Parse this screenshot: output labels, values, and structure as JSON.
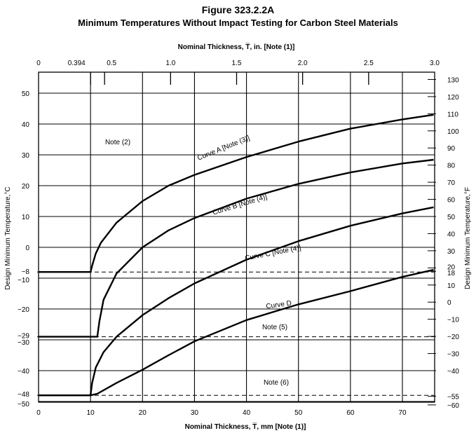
{
  "figure": {
    "number": "Figure 323.2.2A",
    "title": "Minimum Temperatures Without Impact Testing for Carbon Steel Materials"
  },
  "chart_data": {
    "type": "line",
    "x_bottom": {
      "label": "Nominal Thickness, T̅, mm [Note (1)]",
      "ticks": [
        0,
        10,
        20,
        30,
        40,
        50,
        60,
        70
      ],
      "range": [
        0,
        76.2
      ]
    },
    "x_top": {
      "label": "Nominal Thickness, T̅, in. [Note (1)]",
      "ticks": [
        {
          "label": "0",
          "in": 0
        },
        {
          "label": "0.394",
          "in": 0.394
        },
        {
          "label": "0.5",
          "in": 0.5
        },
        {
          "label": "1.0",
          "in": 1.0
        },
        {
          "label": "1.5",
          "in": 1.5
        },
        {
          "label": "2.0",
          "in": 2.0
        },
        {
          "label": "2.5",
          "in": 2.5
        },
        {
          "label": "3.0",
          "in": 3.0
        }
      ],
      "range": [
        0,
        3.0
      ]
    },
    "y_left": {
      "label": "Design Minimum Temperature,°C",
      "ticks": [
        "50",
        "40",
        "30",
        "20",
        "10",
        "0",
        "−8",
        "−10",
        "−20",
        "−29",
        "−30",
        "−40",
        "−48",
        "−50"
      ],
      "tick_values": [
        50,
        40,
        30,
        20,
        10,
        0,
        -8,
        -10,
        -20,
        -29,
        -30,
        -40,
        -48,
        -50
      ],
      "range": [
        -51.1,
        54.4
      ]
    },
    "y_right": {
      "label": "Design Minimum Temperature,°F",
      "ticks": [
        "130",
        "120",
        "110",
        "100",
        "90",
        "80",
        "70",
        "60",
        "50",
        "40",
        "30",
        "20",
        "18",
        "10",
        "0",
        "−10",
        "−20",
        "−30",
        "−40",
        "−55",
        "−60"
      ],
      "tick_values": [
        130,
        120,
        110,
        100,
        90,
        80,
        70,
        60,
        50,
        40,
        30,
        20,
        18,
        10,
        0,
        -10,
        -20,
        -30,
        -40,
        -55,
        -60
      ],
      "range": [
        -60,
        130
      ]
    },
    "series": [
      {
        "name": "Curve A [Note (3)]",
        "x": [
          0,
          10,
          10.3,
          11,
          12,
          15,
          20,
          25,
          30,
          40,
          50,
          60,
          70,
          76
        ],
        "y": [
          -8,
          -8,
          -6,
          -2,
          1.5,
          8,
          15,
          20,
          23.5,
          29.3,
          34.3,
          38.5,
          41.5,
          43
        ]
      },
      {
        "name": "Curve B [Note (4)]",
        "x": [
          0,
          11.3,
          11.7,
          12.5,
          15,
          20,
          25,
          30,
          40,
          50,
          60,
          70,
          76
        ],
        "y": [
          -29,
          -29,
          -24,
          -17,
          -8.5,
          0,
          5.5,
          9.5,
          15.8,
          20.6,
          24.3,
          27.2,
          28.4
        ]
      },
      {
        "name": "Curve C [Note (4)]",
        "x": [
          0,
          10,
          10.3,
          11,
          12.5,
          15,
          20,
          25,
          30,
          40,
          50,
          60,
          70,
          76
        ],
        "y": [
          -48,
          -48,
          -44,
          -39,
          -34,
          -29,
          -22,
          -16.5,
          -11.7,
          -4,
          2,
          7,
          11,
          13
        ]
      },
      {
        "name": "Curve D",
        "x": [
          0,
          10,
          11.3,
          15,
          20,
          25,
          30,
          40,
          50,
          60,
          70,
          76
        ],
        "y": [
          -48,
          -48,
          -47.5,
          -44,
          -39.7,
          -35,
          -30.5,
          -23.6,
          -18.5,
          -14.2,
          -9.6,
          -7.3
        ]
      }
    ],
    "curve_labels": [
      "Curve A [Note (3)]",
      "Curve B [Note (4)]",
      "Curve C [Note (4)]",
      "Curve D"
    ],
    "notes": [
      "Note (2)",
      "Note (5)",
      "Note (6)"
    ],
    "dashed_lines_c": [
      -8,
      -29,
      -48
    ],
    "grid": "vertical lines at every 10 mm",
    "legend": "none; curves labeled inline"
  }
}
